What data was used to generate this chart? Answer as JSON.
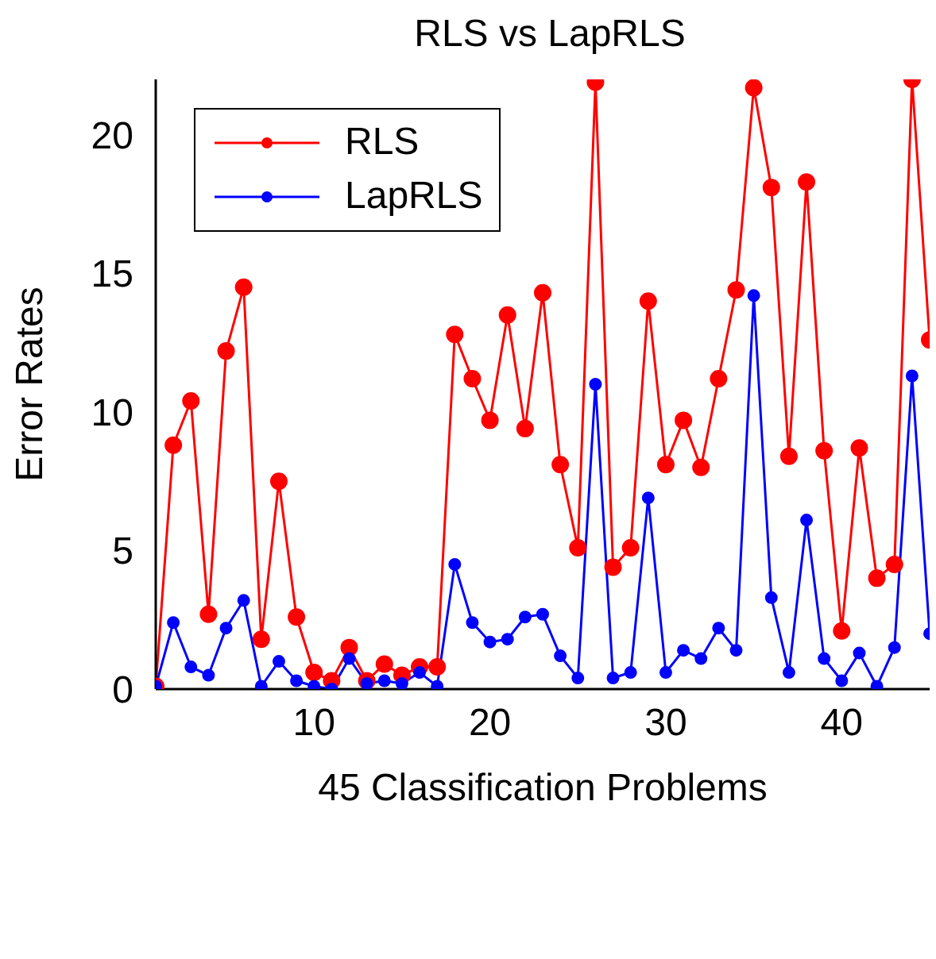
{
  "chart_data": {
    "type": "line",
    "title": "RLS vs LapRLS",
    "xlabel": "45 Classification Problems",
    "ylabel": "Error Rates",
    "x": [
      1,
      2,
      3,
      4,
      5,
      6,
      7,
      8,
      9,
      10,
      11,
      12,
      13,
      14,
      15,
      16,
      17,
      18,
      19,
      20,
      21,
      22,
      23,
      24,
      25,
      26,
      27,
      28,
      29,
      30,
      31,
      32,
      33,
      34,
      35,
      36,
      37,
      38,
      39,
      40,
      41,
      42,
      43,
      44,
      45
    ],
    "series": [
      {
        "name": "RLS",
        "color": "#ff0000",
        "values": [
          0.1,
          8.8,
          10.4,
          2.7,
          12.2,
          14.5,
          1.8,
          7.5,
          2.6,
          0.6,
          0.3,
          1.5,
          0.3,
          0.9,
          0.5,
          0.8,
          0.8,
          12.8,
          11.2,
          9.7,
          13.5,
          9.4,
          14.3,
          8.1,
          5.1,
          21.9,
          4.4,
          5.1,
          14.0,
          8.1,
          9.7,
          8.0,
          11.2,
          14.4,
          21.7,
          18.1,
          8.4,
          18.3,
          8.6,
          2.1,
          8.7,
          4.0,
          4.5,
          22,
          12.6
        ]
      },
      {
        "name": "LapRLS",
        "color": "#0000ff",
        "values": [
          0.1,
          2.4,
          0.8,
          0.5,
          2.2,
          3.2,
          0.1,
          1.0,
          0.3,
          0.1,
          0.0,
          1.1,
          0.2,
          0.3,
          0.2,
          0.6,
          0.1,
          4.5,
          2.4,
          1.7,
          1.8,
          2.6,
          2.7,
          1.2,
          0.4,
          11.0,
          0.4,
          0.6,
          6.9,
          0.6,
          1.4,
          1.1,
          2.2,
          1.4,
          14.2,
          3.3,
          0.6,
          6.1,
          1.1,
          0.3,
          1.3,
          0.1,
          1.5,
          11.3,
          2.0
        ]
      }
    ],
    "xlim": [
      1,
      45
    ],
    "xticks": [
      10,
      20,
      30,
      40
    ],
    "ylim": [
      0,
      22
    ],
    "yticks": [
      0,
      5,
      10,
      15,
      20
    ],
    "grid": false,
    "legend": "top left",
    "marker": "circle",
    "line_style": "solid"
  }
}
